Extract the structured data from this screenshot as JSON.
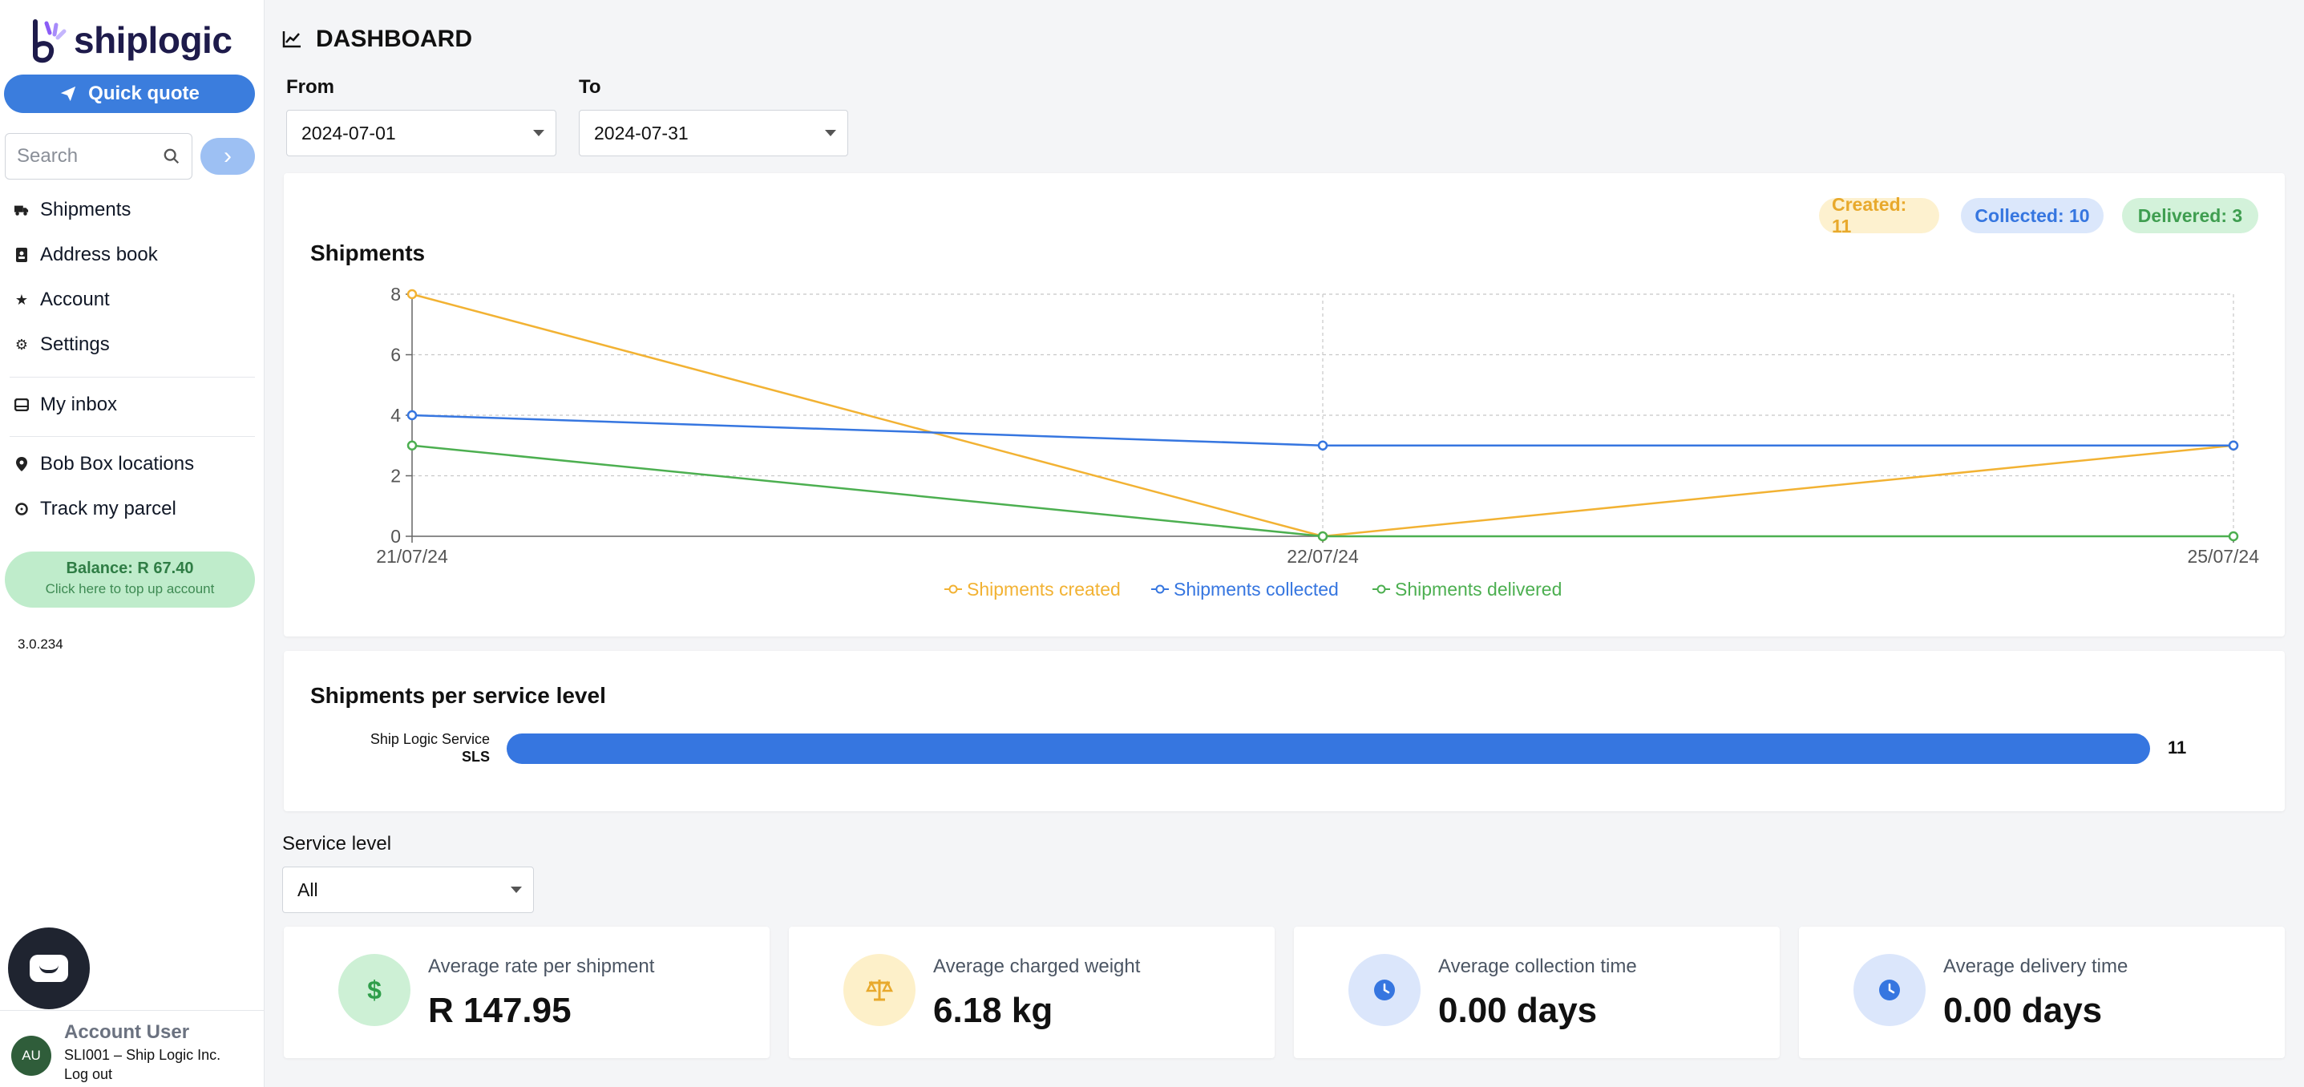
{
  "brand": {
    "name": "shiplogic"
  },
  "sidebar": {
    "quick_quote_label": "Quick quote",
    "search_placeholder": "Search",
    "nav": [
      {
        "label": "Shipments",
        "icon": "truck-icon"
      },
      {
        "label": "Address book",
        "icon": "address-book-icon"
      },
      {
        "label": "Account",
        "icon": "star-icon"
      },
      {
        "label": "Settings",
        "icon": "gear-icon"
      },
      {
        "label": "My inbox",
        "icon": "inbox-icon"
      },
      {
        "label": "Bob Box locations",
        "icon": "location-pin-icon"
      },
      {
        "label": "Track my parcel",
        "icon": "track-icon"
      }
    ],
    "balance": {
      "title": "Balance: R 67.40",
      "subtitle": "Click here to top up account"
    },
    "version": "3.0.234",
    "user": {
      "initials": "AU",
      "name": "Account User",
      "org": "SLI001 – Ship Logic Inc.",
      "logout": "Log out"
    }
  },
  "header": {
    "title": "DASHBOARD"
  },
  "filters": {
    "from_label": "From",
    "from_value": "2024-07-01",
    "to_label": "To",
    "to_value": "2024-07-31"
  },
  "shipments_card": {
    "title": "Shipments",
    "badges": {
      "created": "Created: 11",
      "collected": "Collected: 10",
      "delivered": "Delivered: 3"
    }
  },
  "service_card": {
    "title": "Shipments per service level",
    "bar_name": "Ship Logic Service",
    "bar_code": "SLS",
    "bar_value": "11"
  },
  "service_filter": {
    "label": "Service level",
    "value": "All"
  },
  "stats": [
    {
      "label": "Average rate per shipment",
      "value": "R 147.95",
      "icon": "dollar-icon"
    },
    {
      "label": "Average charged weight",
      "value": "6.18 kg",
      "icon": "scale-icon"
    },
    {
      "label": "Average collection time",
      "value": "0.00 days",
      "icon": "clock-icon"
    },
    {
      "label": "Average delivery time",
      "value": "0.00 days",
      "icon": "clock-icon"
    }
  ],
  "colors": {
    "accent": "#3b7ddd",
    "created": "#f2b233",
    "collected": "#3676e0",
    "delivered": "#4caf50"
  },
  "chart_data": [
    {
      "type": "line",
      "title": "Shipments",
      "x": [
        "21/07/24",
        "22/07/24",
        "25/07/24"
      ],
      "yticks": [
        0,
        2,
        4,
        6,
        8
      ],
      "ylim": [
        0,
        8
      ],
      "grid": true,
      "legend_position": "bottom",
      "series": [
        {
          "name": "Shipments created",
          "values": [
            8,
            0,
            3
          ],
          "color": "#f2b233"
        },
        {
          "name": "Shipments collected",
          "values": [
            4,
            3,
            3
          ],
          "color": "#3676e0"
        },
        {
          "name": "Shipments delivered",
          "values": [
            3,
            0,
            0
          ],
          "color": "#4caf50"
        }
      ]
    },
    {
      "type": "bar",
      "title": "Shipments per service level",
      "categories": [
        "Ship Logic Service SLS"
      ],
      "values": [
        11
      ],
      "color": "#3676e0"
    }
  ]
}
